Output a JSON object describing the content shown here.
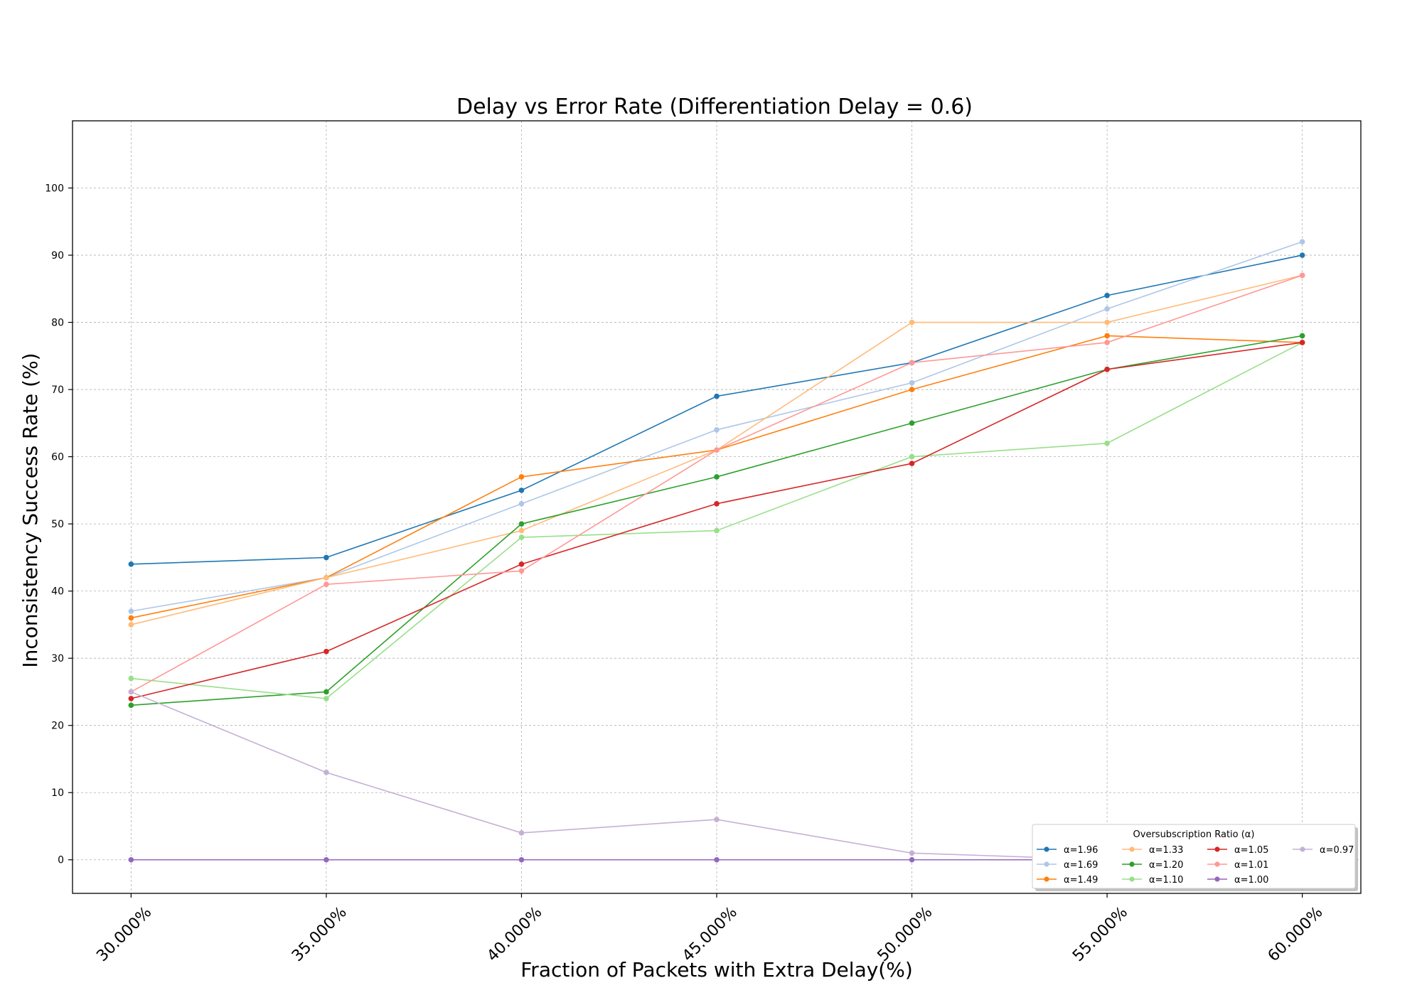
{
  "chart_data": {
    "type": "line",
    "title": "Delay vs Error Rate (Differentiation Delay = 0.6)",
    "xlabel": "Fraction of Packets with Extra Delay(%)",
    "ylabel": "Inconsistency Success Rate (%)",
    "x": [
      30,
      35,
      40,
      45,
      50,
      55,
      60
    ],
    "x_tick_labels": [
      "30.000%",
      "35.000%",
      "40.000%",
      "45.000%",
      "50.000%",
      "55.000%",
      "60.000%"
    ],
    "y_ticks": [
      0,
      10,
      20,
      30,
      40,
      50,
      60,
      70,
      80,
      90,
      100
    ],
    "xlim": [
      28.5,
      61.5
    ],
    "ylim": [
      -5,
      110
    ],
    "grid": true,
    "legend_title": "Oversubscription Ratio (α)",
    "legend_position": "lower-right",
    "series": [
      {
        "name": "α=1.96",
        "color": "#1f77b4",
        "values": [
          44,
          45,
          55,
          69,
          74,
          84,
          90
        ]
      },
      {
        "name": "α=1.69",
        "color": "#aec7e8",
        "values": [
          37,
          42,
          53,
          64,
          71,
          82,
          92
        ]
      },
      {
        "name": "α=1.49",
        "color": "#ff7f0e",
        "values": [
          36,
          42,
          57,
          61,
          70,
          78,
          77
        ]
      },
      {
        "name": "α=1.33",
        "color": "#ffbb78",
        "values": [
          35,
          42,
          49,
          61,
          80,
          80,
          87
        ]
      },
      {
        "name": "α=1.20",
        "color": "#2ca02c",
        "values": [
          23,
          25,
          50,
          57,
          65,
          73,
          78
        ]
      },
      {
        "name": "α=1.10",
        "color": "#98df8a",
        "values": [
          27,
          24,
          48,
          49,
          60,
          62,
          77
        ]
      },
      {
        "name": "α=1.05",
        "color": "#d62728",
        "values": [
          24,
          31,
          44,
          53,
          59,
          73,
          77
        ]
      },
      {
        "name": "α=1.01",
        "color": "#ff9896",
        "values": [
          25,
          41,
          43,
          61,
          74,
          77,
          87
        ]
      },
      {
        "name": "α=1.00",
        "color": "#9467bd",
        "values": [
          0,
          0,
          0,
          0,
          0,
          0,
          0
        ]
      },
      {
        "name": "α=0.97",
        "color": "#c5b0d5",
        "values": [
          25,
          13,
          4,
          6,
          1,
          0,
          0
        ]
      }
    ]
  }
}
